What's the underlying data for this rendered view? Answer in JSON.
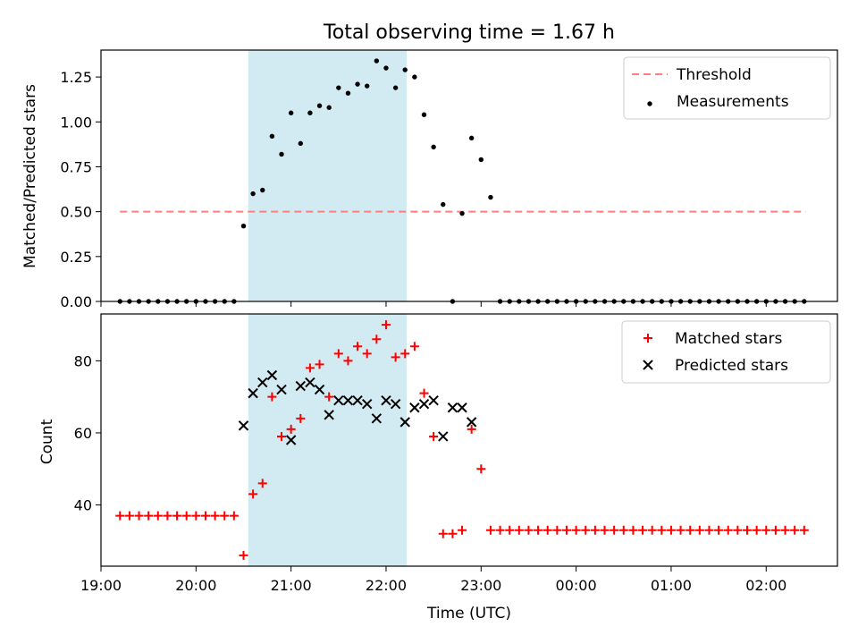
{
  "chart_data": [
    {
      "type": "scatter",
      "title": "Total observing time = 1.67 h",
      "ylabel": "Matched/Predicted stars",
      "xlabel": "",
      "xlim": [
        "19:00",
        "02:45"
      ],
      "ylim": [
        0,
        1.4
      ],
      "yticks": [
        0.0,
        0.25,
        0.5,
        0.75,
        1.0,
        1.25
      ],
      "ytick_labels": [
        "0.00",
        "0.25",
        "0.50",
        "0.75",
        "1.00",
        "1.25"
      ],
      "shaded_interval": {
        "start": "20:33",
        "end": "22:13",
        "color": "#add8e6"
      },
      "legend_position": "top-right",
      "series": [
        {
          "name": "Threshold",
          "kind": "line",
          "style": "dashed",
          "color": "#ff7f7f",
          "x": [
            "19:12",
            "02:25"
          ],
          "y": [
            0.5,
            0.5
          ]
        },
        {
          "name": "Measurements",
          "kind": "scatter",
          "marker": "dot",
          "color": "#000000",
          "x": [
            "19:12",
            "19:18",
            "19:24",
            "19:30",
            "19:36",
            "19:42",
            "19:48",
            "19:54",
            "20:00",
            "20:06",
            "20:12",
            "20:18",
            "20:24",
            "20:30",
            "20:36",
            "20:42",
            "20:48",
            "20:54",
            "21:00",
            "21:06",
            "21:12",
            "21:18",
            "21:24",
            "21:30",
            "21:36",
            "21:42",
            "21:48",
            "21:54",
            "22:00",
            "22:06",
            "22:12",
            "22:18",
            "22:24",
            "22:30",
            "22:36",
            "22:42",
            "22:48",
            "22:54",
            "23:00",
            "23:06",
            "23:12",
            "23:18",
            "23:24",
            "23:30",
            "23:36",
            "23:42",
            "23:48",
            "23:54",
            "00:00",
            "00:06",
            "00:12",
            "00:18",
            "00:24",
            "00:30",
            "00:36",
            "00:42",
            "00:48",
            "00:54",
            "01:00",
            "01:06",
            "01:12",
            "01:18",
            "01:24",
            "01:30",
            "01:36",
            "01:42",
            "01:48",
            "01:54",
            "02:00",
            "02:06",
            "02:12",
            "02:18",
            "02:24"
          ],
          "y": [
            0,
            0,
            0,
            0,
            0,
            0,
            0,
            0,
            0,
            0,
            0,
            0,
            0,
            0.42,
            0.6,
            0.62,
            0.92,
            0.82,
            1.05,
            0.88,
            1.05,
            1.09,
            1.08,
            1.19,
            1.16,
            1.21,
            1.2,
            1.34,
            1.3,
            1.19,
            1.29,
            1.25,
            1.04,
            0.86,
            0.54,
            0,
            0.49,
            0.91,
            0.79,
            0.58,
            0,
            0,
            0,
            0,
            0,
            0,
            0,
            0,
            0,
            0,
            0,
            0,
            0,
            0,
            0,
            0,
            0,
            0,
            0,
            0,
            0,
            0,
            0,
            0,
            0,
            0,
            0,
            0,
            0,
            0,
            0,
            0,
            0
          ]
        }
      ]
    },
    {
      "type": "scatter",
      "title": "",
      "ylabel": "Count",
      "xlabel": "Time (UTC)",
      "xlim": [
        "19:00",
        "02:45"
      ],
      "xticks": [
        "19:00",
        "20:00",
        "21:00",
        "22:00",
        "23:00",
        "00:00",
        "01:00",
        "02:00"
      ],
      "ylim": [
        23,
        93
      ],
      "yticks": [
        40,
        60,
        80
      ],
      "shaded_interval": {
        "start": "20:33",
        "end": "22:13",
        "color": "#add8e6"
      },
      "legend_position": "top-right",
      "series": [
        {
          "name": "Matched stars",
          "kind": "scatter",
          "marker": "plus",
          "color": "#ff0000",
          "x": [
            "19:12",
            "19:18",
            "19:24",
            "19:30",
            "19:36",
            "19:42",
            "19:48",
            "19:54",
            "20:00",
            "20:06",
            "20:12",
            "20:18",
            "20:24",
            "20:30",
            "20:36",
            "20:42",
            "20:48",
            "20:54",
            "21:00",
            "21:06",
            "21:12",
            "21:18",
            "21:24",
            "21:30",
            "21:36",
            "21:42",
            "21:48",
            "21:54",
            "22:00",
            "22:06",
            "22:12",
            "22:18",
            "22:24",
            "22:30",
            "22:36",
            "22:42",
            "22:48",
            "22:54",
            "23:00",
            "23:06",
            "23:12",
            "23:18",
            "23:24",
            "23:30",
            "23:36",
            "23:42",
            "23:48",
            "23:54",
            "00:00",
            "00:06",
            "00:12",
            "00:18",
            "00:24",
            "00:30",
            "00:36",
            "00:42",
            "00:48",
            "00:54",
            "01:00",
            "01:06",
            "01:12",
            "01:18",
            "01:24",
            "01:30",
            "01:36",
            "01:42",
            "01:48",
            "01:54",
            "02:00",
            "02:06",
            "02:12",
            "02:18",
            "02:24"
          ],
          "y": [
            37,
            37,
            37,
            37,
            37,
            37,
            37,
            37,
            37,
            37,
            37,
            37,
            37,
            26,
            43,
            46,
            70,
            59,
            61,
            64,
            78,
            79,
            70,
            82,
            80,
            84,
            82,
            86,
            90,
            81,
            82,
            84,
            71,
            59,
            32,
            32,
            33,
            61,
            50,
            33,
            33,
            33,
            33,
            33,
            33,
            33,
            33,
            33,
            33,
            33,
            33,
            33,
            33,
            33,
            33,
            33,
            33,
            33,
            33,
            33,
            33,
            33,
            33,
            33,
            33,
            33,
            33,
            33,
            33,
            33,
            33,
            33,
            33
          ]
        },
        {
          "name": "Predicted stars",
          "kind": "scatter",
          "marker": "x",
          "color": "#000000",
          "x": [
            "20:30",
            "20:36",
            "20:42",
            "20:48",
            "20:54",
            "21:00",
            "21:06",
            "21:12",
            "21:18",
            "21:24",
            "21:30",
            "21:36",
            "21:42",
            "21:48",
            "21:54",
            "22:00",
            "22:06",
            "22:12",
            "22:18",
            "22:24",
            "22:30",
            "22:36",
            "22:42",
            "22:48",
            "22:54"
          ],
          "y": [
            62,
            71,
            74,
            76,
            72,
            58,
            73,
            74,
            72,
            65,
            69,
            69,
            69,
            68,
            64,
            69,
            68,
            63,
            67,
            68,
            69,
            59,
            67,
            67,
            63
          ]
        }
      ]
    }
  ]
}
